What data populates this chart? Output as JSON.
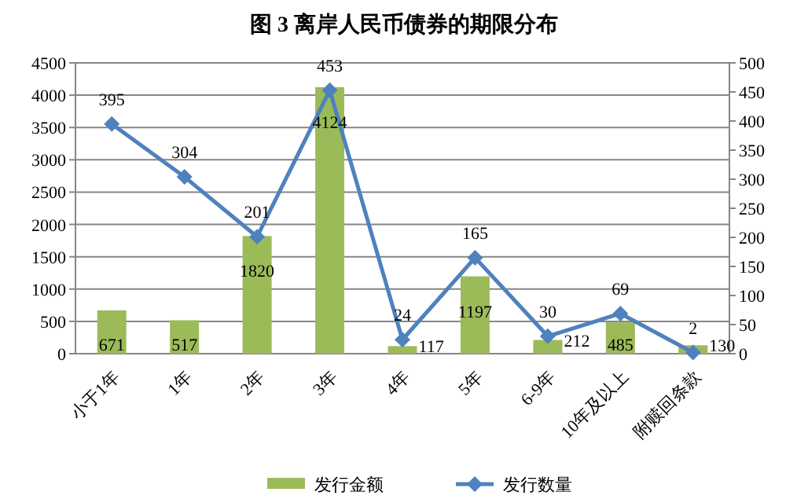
{
  "chart_data": {
    "type": "bar",
    "title": "图 3 离岸人民币债券的期限分布",
    "categories": [
      "小于1年",
      "1年",
      "2年",
      "3年",
      "4年",
      "5年",
      "6-9年",
      "10年及以上",
      "附赎回条款"
    ],
    "series": [
      {
        "name": "发行金额",
        "color": "#9bbb59",
        "values": [
          671,
          517,
          1820,
          4124,
          117,
          1197,
          212,
          485,
          130
        ]
      },
      {
        "name": "发行数量",
        "type": "line",
        "axis": "y2",
        "color": "#4f81bd",
        "marker": "diamond",
        "values": [
          395,
          304,
          201,
          453,
          24,
          165,
          30,
          69,
          2
        ]
      }
    ],
    "ylim": [
      0,
      4500
    ],
    "yticks": [
      0,
      500,
      1000,
      1500,
      2000,
      2500,
      3000,
      3500,
      4000,
      4500
    ],
    "y2lim": [
      0,
      500
    ],
    "y2ticks": [
      0,
      50,
      100,
      150,
      200,
      250,
      300,
      350,
      400,
      450,
      500
    ],
    "grid": "y",
    "legend": "bottom",
    "data_labels": true
  }
}
